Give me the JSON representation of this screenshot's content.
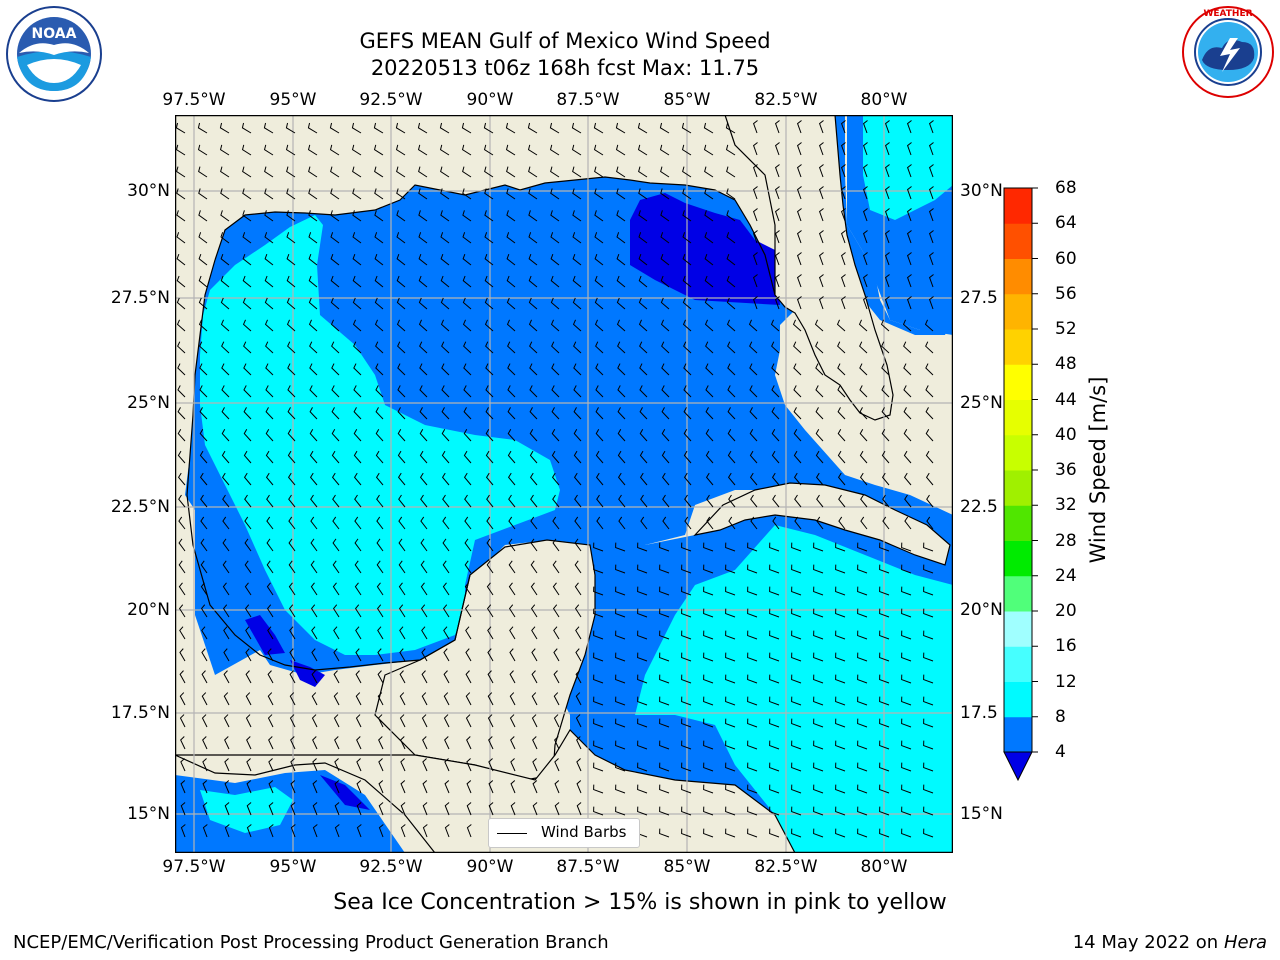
{
  "header": {
    "title_line1": "GEFS MEAN Gulf of Mexico Wind Speed",
    "title_line2": "20220513 t06z 168h fcst   Max: 11.75"
  },
  "logos": {
    "noara_text": "NOAA",
    "noaa_ring": "NATIONAL OCEANIC AND ATMOSPHERIC ADMINISTRATION · U.S. DEPARTMENT OF COMMERCE",
    "nws_ring": "NATIONAL WEATHER SERVICE"
  },
  "axes": {
    "lon_ticks": [
      "97.5°W",
      "95°W",
      "92.5°W",
      "90°W",
      "87.5°W",
      "85°W",
      "82.5°W",
      "80°W"
    ],
    "lat_ticks_left": [
      "30°N",
      "27.5°N",
      "25°N",
      "22.5°N",
      "20°N",
      "17.5°N",
      "15°N"
    ],
    "lat_ticks_right": [
      "30°N",
      "27.5",
      "25°N",
      "22.5",
      "20°N",
      "17.5",
      "15°N"
    ]
  },
  "legend": {
    "label": "Wind Barbs"
  },
  "colorbar": {
    "title": "Wind Speed [m/s]",
    "ticks": [
      "4",
      "8",
      "12",
      "16",
      "20",
      "24",
      "28",
      "32",
      "36",
      "40",
      "44",
      "48",
      "52",
      "56",
      "60",
      "64",
      "68"
    ],
    "colors": [
      "#0078ff",
      "#00faff",
      "#46ffff",
      "#a0ffff",
      "#50ff7a",
      "#00eb00",
      "#50e600",
      "#a0f000",
      "#c8ff00",
      "#e6ff00",
      "#ffff00",
      "#ffd200",
      "#ffb400",
      "#ff8c00",
      "#ff5000",
      "#ff2800",
      "#ff0000"
    ],
    "under_color": "#0000e6"
  },
  "subtitle": "Sea Ice Concentration > 15% is shown in pink to yellow",
  "footer": {
    "left": "NCEP/EMC/Verification Post Processing Product Generation Branch",
    "right_date": "14 May 2022 on",
    "right_host": "Hera"
  },
  "colors": {
    "land": "#efeddc",
    "wind_4_8": "#0078ff",
    "wind_8_12": "#00faff",
    "wind_lt4": "#0000e6",
    "grid": "#b4b4b4"
  }
}
